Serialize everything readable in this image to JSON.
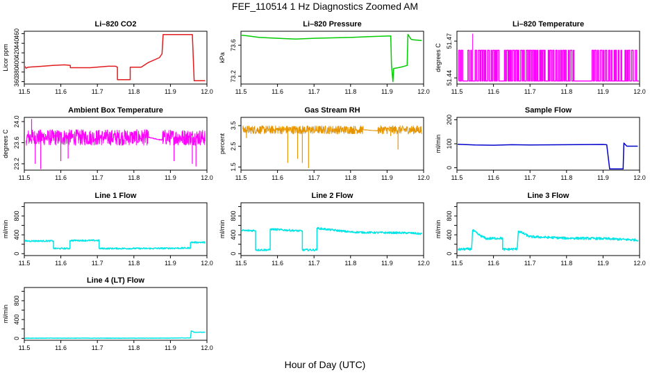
{
  "page": {
    "title": "FEF_110514  1 Hz Diagnostics Zoomed AM",
    "x_axis_title": "Hour of Day (UTC)"
  },
  "chart_data": [
    {
      "id": "co2",
      "type": "line",
      "title": "Li–820 CO2",
      "ylabel": "Licor ppm",
      "color": "#e31a1c",
      "xlim": [
        11.5,
        12.0
      ],
      "ylim": [
        355,
        465
      ],
      "xticks": [
        11.5,
        11.6,
        11.7,
        11.8,
        11.9,
        12.0
      ],
      "xtick_labels": [
        "11.5",
        "11.6",
        "11.7",
        "11.8",
        "11.9",
        "12.0"
      ],
      "yticks": [
        360,
        380,
        400,
        420,
        440,
        460
      ],
      "ytick_labels": [
        "360",
        "380",
        "400",
        "420",
        "440",
        "460"
      ],
      "series": [
        {
          "name": "CO2",
          "x": [
            11.5,
            11.505,
            11.51,
            11.55,
            11.58,
            11.61,
            11.626,
            11.626,
            11.68,
            11.73,
            11.75,
            11.755,
            11.755,
            11.79,
            11.79,
            11.82,
            11.84,
            11.87,
            11.877,
            11.88,
            11.96,
            11.965,
            11.995
          ],
          "y": [
            393,
            388,
            390,
            392,
            394,
            395,
            394,
            389,
            389,
            392,
            392,
            390,
            364,
            364,
            390,
            390,
            400,
            410,
            418,
            458,
            458,
            362,
            362
          ]
        }
      ]
    },
    {
      "id": "pressure",
      "type": "line",
      "title": "Li–820 Pressure",
      "ylabel": "kPa",
      "color": "#00cc00",
      "xlim": [
        11.5,
        12.0
      ],
      "ylim": [
        73.1,
        73.78
      ],
      "xticks": [
        11.5,
        11.6,
        11.7,
        11.8,
        11.9,
        12.0
      ],
      "xtick_labels": [
        "11.5",
        "11.6",
        "11.7",
        "11.8",
        "11.9",
        "12.0"
      ],
      "yticks": [
        73.2,
        73.6
      ],
      "ytick_labels": [
        "73.2",
        "73.6"
      ],
      "series": [
        {
          "name": "Pressure",
          "x": [
            11.5,
            11.52,
            11.55,
            11.6,
            11.65,
            11.7,
            11.8,
            11.85,
            11.91,
            11.912,
            11.916,
            11.918,
            11.93,
            11.94,
            11.955,
            11.957,
            11.965,
            11.97,
            11.995
          ],
          "y": [
            73.73,
            73.72,
            73.7,
            73.69,
            73.68,
            73.69,
            73.7,
            73.71,
            73.72,
            73.35,
            73.13,
            73.3,
            73.31,
            73.32,
            73.34,
            73.74,
            73.68,
            73.67,
            73.66
          ]
        }
      ]
    },
    {
      "id": "licor-temp",
      "type": "line",
      "title": "Li–820 Temperature",
      "ylabel": "degrees C",
      "color": "#ff00ff",
      "xlim": [
        11.5,
        12.0
      ],
      "ylim": [
        51.435,
        51.478
      ],
      "xticks": [
        11.5,
        11.6,
        11.7,
        11.8,
        11.9,
        12.0
      ],
      "xtick_labels": [
        "11.5",
        "11.6",
        "11.7",
        "11.8",
        "11.9",
        "12.0"
      ],
      "yticks": [
        51.44,
        51.47
      ],
      "ytick_labels": [
        "51.44",
        "51.47"
      ],
      "series": [
        {
          "name": "Temperature",
          "low": 51.4375,
          "high": 51.4625,
          "spike": 51.476,
          "spike_at": 11.543,
          "segments": [
            [
              11.505,
              11.505
            ],
            [
              11.512,
              11.52
            ],
            [
              11.53,
              11.545
            ],
            [
              11.55,
              11.62
            ],
            [
              11.63,
              11.74
            ],
            [
              11.75,
              11.82
            ],
            [
              11.87,
              11.95
            ],
            [
              11.96,
              11.995
            ]
          ]
        }
      ]
    },
    {
      "id": "box-temp",
      "type": "line",
      "title": "Ambient Box Temperature",
      "ylabel": "degrees C",
      "color": "#ff00ff",
      "xlim": [
        11.5,
        12.0
      ],
      "ylim": [
        23.08,
        24.08
      ],
      "xticks": [
        11.5,
        11.6,
        11.7,
        11.8,
        11.9,
        12.0
      ],
      "xtick_labels": [
        "11.5",
        "11.6",
        "11.7",
        "11.8",
        "11.9",
        "12.0"
      ],
      "yticks": [
        23.2,
        23.6,
        24.0
      ],
      "ytick_labels": [
        "23.2",
        "23.6",
        "24.0"
      ],
      "series": [
        {
          "name": "Box Temp",
          "band_lo": 23.55,
          "band_hi": 23.85,
          "gap_from": 11.84,
          "gap_to": 11.875,
          "dips": [
            [
              11.545,
              23.1
            ],
            [
              11.6,
              23.25
            ],
            [
              11.62,
              23.3
            ],
            [
              11.53,
              23.2
            ],
            [
              11.97,
              23.15
            ],
            [
              11.96,
              23.2
            ],
            [
              11.52,
              24.05
            ],
            [
              11.91,
              23.25
            ]
          ]
        }
      ]
    },
    {
      "id": "rh",
      "type": "line",
      "title": "Gas Stream RH",
      "ylabel": "percent",
      "color": "#e69500",
      "xlim": [
        11.5,
        12.0
      ],
      "ylim": [
        1.35,
        3.9
      ],
      "xticks": [
        11.5,
        11.6,
        11.7,
        11.8,
        11.9,
        12.0
      ],
      "xtick_labels": [
        "11.5",
        "11.6",
        "11.7",
        "11.8",
        "11.9",
        "12.0"
      ],
      "yticks": [
        1.5,
        2.5,
        3.5
      ],
      "ytick_labels": [
        "1.5",
        "2.5",
        "3.5"
      ],
      "series": [
        {
          "name": "RH",
          "band_lo": 3.1,
          "band_hi": 3.5,
          "gap_from": 11.835,
          "gap_to": 11.875,
          "dips": [
            [
              11.628,
              1.7
            ],
            [
              11.655,
              1.9
            ],
            [
              11.668,
              1.7
            ],
            [
              11.685,
              1.45
            ],
            [
              11.93,
              2.35
            ],
            [
              11.91,
              3.0
            ],
            [
              11.515,
              2.9
            ]
          ]
        }
      ]
    },
    {
      "id": "sample-flow",
      "type": "line",
      "title": "Sample Flow",
      "ylabel": "ml/min",
      "color": "#0000cc",
      "xlim": [
        11.5,
        12.0
      ],
      "ylim": [
        -10,
        210
      ],
      "xticks": [
        11.5,
        11.6,
        11.7,
        11.8,
        11.9,
        12.0
      ],
      "xtick_labels": [
        "11.5",
        "11.6",
        "11.7",
        "11.8",
        "11.9",
        "12.0"
      ],
      "yticks": [
        0,
        100,
        200
      ],
      "ytick_labels": [
        "0",
        "100",
        "200"
      ],
      "series": [
        {
          "name": "Sample Flow",
          "x": [
            11.5,
            11.55,
            11.6,
            11.65,
            11.7,
            11.8,
            11.9,
            11.91,
            11.918,
            11.955,
            11.957,
            11.965,
            11.995
          ],
          "y": [
            98,
            95,
            94,
            96,
            95,
            96,
            97,
            96,
            -5,
            -5,
            103,
            90,
            90
          ]
        }
      ]
    },
    {
      "id": "line1",
      "type": "line",
      "title": "Line 1 Flow",
      "ylabel": "ml/min",
      "color": "#00e5e5",
      "xlim": [
        11.5,
        12.0
      ],
      "ylim": [
        -40,
        1080
      ],
      "xticks": [
        11.5,
        11.6,
        11.7,
        11.8,
        11.9,
        12.0
      ],
      "xtick_labels": [
        "11.5",
        "11.6",
        "11.7",
        "11.8",
        "11.9",
        "12.0"
      ],
      "yticks": [
        0,
        200,
        400,
        600,
        800,
        1000
      ],
      "ytick_labels": [
        "0",
        "400",
        "800"
      ],
      "series": [
        {
          "name": "Line 1",
          "x": [
            11.5,
            11.58,
            11.58,
            11.625,
            11.625,
            11.705,
            11.705,
            11.84,
            11.955,
            11.955,
            11.995
          ],
          "y": [
            270,
            270,
            110,
            110,
            280,
            280,
            110,
            110,
            120,
            240,
            240
          ],
          "noise": 15
        }
      ]
    },
    {
      "id": "line2",
      "type": "line",
      "title": "Line 2 Flow",
      "ylabel": "ml/min",
      "color": "#00e5e5",
      "xlim": [
        11.5,
        12.0
      ],
      "ylim": [
        -40,
        1080
      ],
      "xticks": [
        11.5,
        11.6,
        11.7,
        11.8,
        11.9,
        12.0
      ],
      "xtick_labels": [
        "11.5",
        "11.6",
        "11.7",
        "11.8",
        "11.9",
        "12.0"
      ],
      "yticks": [
        0,
        200,
        400,
        600,
        800,
        1000
      ],
      "ytick_labels": [
        "0",
        "400",
        "800"
      ],
      "series": [
        {
          "name": "Line 2",
          "x": [
            11.5,
            11.54,
            11.54,
            11.58,
            11.58,
            11.668,
            11.668,
            11.708,
            11.708,
            11.8,
            11.84,
            11.96,
            11.995
          ],
          "y": [
            490,
            490,
            80,
            80,
            520,
            480,
            80,
            80,
            540,
            460,
            450,
            440,
            420
          ],
          "noise": 20
        }
      ]
    },
    {
      "id": "line3",
      "type": "line",
      "title": "Line 3 Flow",
      "ylabel": "ml/min",
      "color": "#00e5e5",
      "xlim": [
        11.5,
        12.0
      ],
      "ylim": [
        -40,
        1080
      ],
      "xticks": [
        11.5,
        11.6,
        11.7,
        11.8,
        11.9,
        12.0
      ],
      "xtick_labels": [
        "11.5",
        "11.6",
        "11.7",
        "11.8",
        "11.9",
        "12.0"
      ],
      "yticks": [
        0,
        200,
        400,
        600,
        800,
        1000
      ],
      "ytick_labels": [
        "0",
        "400",
        "800"
      ],
      "series": [
        {
          "name": "Line 3",
          "x": [
            11.5,
            11.54,
            11.543,
            11.56,
            11.58,
            11.625,
            11.625,
            11.665,
            11.668,
            11.7,
            11.8,
            11.9,
            11.96,
            11.995
          ],
          "y": [
            90,
            100,
            500,
            400,
            320,
            330,
            90,
            100,
            480,
            360,
            330,
            320,
            300,
            290
          ],
          "noise": 25
        }
      ]
    },
    {
      "id": "line4",
      "type": "line",
      "title": "Line 4 (LT) Flow",
      "ylabel": "ml/min",
      "color": "#00e5e5",
      "xlim": [
        11.5,
        12.0
      ],
      "ylim": [
        -40,
        1080
      ],
      "xticks": [
        11.5,
        11.6,
        11.7,
        11.8,
        11.9,
        12.0
      ],
      "xtick_labels": [
        "11.5",
        "11.6",
        "11.7",
        "11.8",
        "11.9",
        "12.0"
      ],
      "yticks": [
        0,
        200,
        400,
        600,
        800,
        1000
      ],
      "ytick_labels": [
        "0",
        "400",
        "800"
      ],
      "series": [
        {
          "name": "Line 4",
          "x": [
            11.5,
            11.84,
            11.955,
            11.957,
            11.965,
            11.995
          ],
          "y": [
            5,
            5,
            10,
            160,
            130,
            130
          ],
          "noise": 4
        }
      ]
    }
  ]
}
